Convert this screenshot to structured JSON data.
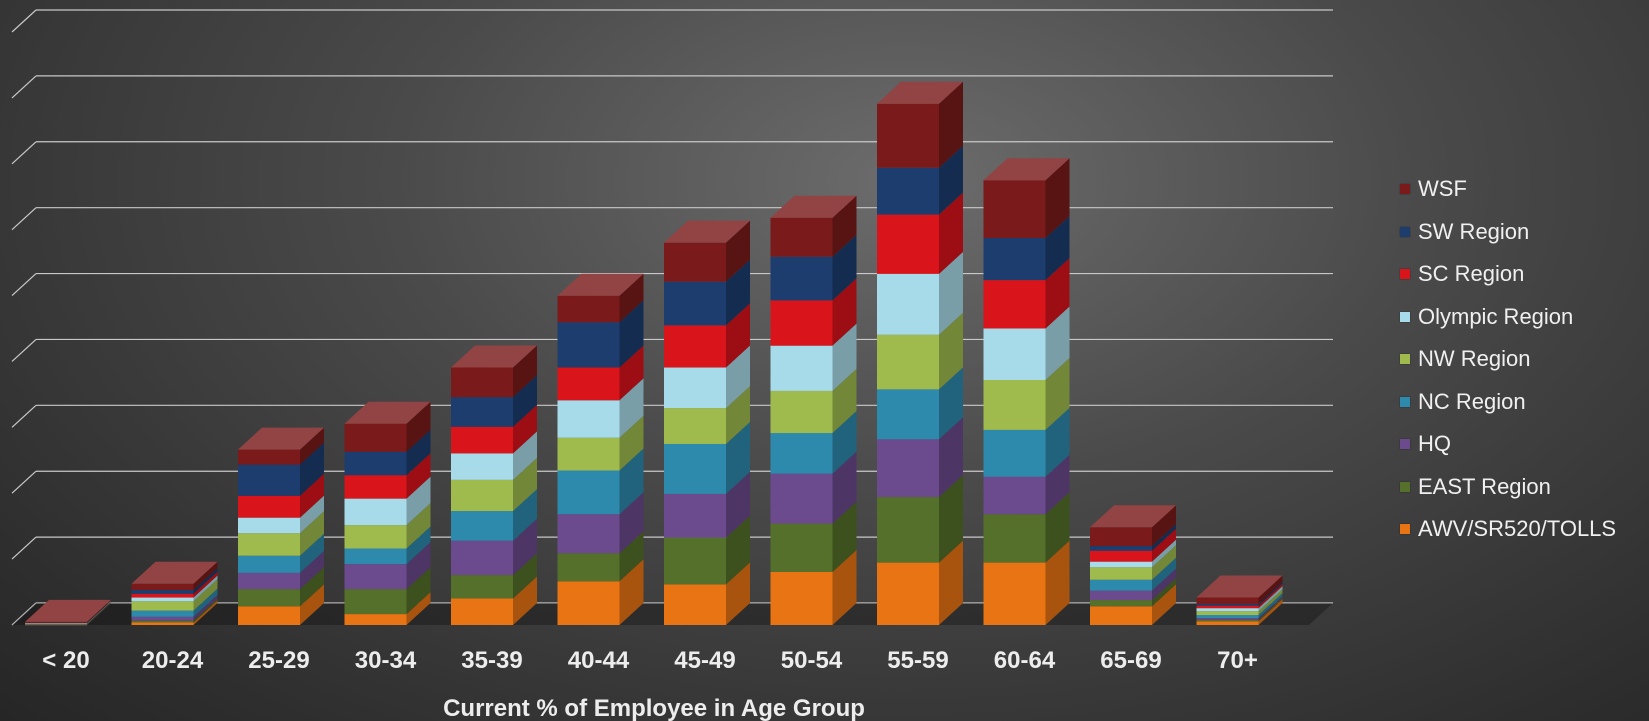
{
  "chart_data": {
    "type": "bar",
    "stacked": true,
    "three_d": true,
    "title": "",
    "xlabel": "Current % of Employee in Age Group",
    "ylabel": "",
    "grid": true,
    "legend_position": "right",
    "categories": [
      "< 20",
      "20-24",
      "25-29",
      "30-34",
      "35-39",
      "40-44",
      "45-49",
      "50-54",
      "55-59",
      "60-64",
      "65-69",
      "70+"
    ],
    "series": [
      {
        "name": "AWV/SR520/TOLLS",
        "color": "#e97413",
        "values": [
          0.01,
          0.08,
          0.6,
          0.35,
          0.85,
          1.4,
          1.3,
          1.7,
          2.0,
          2.0,
          0.6,
          0.12
        ]
      },
      {
        "name": "EAST Region",
        "color": "#55702a",
        "values": [
          0.01,
          0.06,
          0.55,
          0.8,
          0.75,
          0.9,
          1.5,
          1.55,
          2.1,
          1.55,
          0.2,
          0.05
        ]
      },
      {
        "name": "HQ",
        "color": "#6b4a8d",
        "values": [
          0.01,
          0.12,
          0.52,
          0.8,
          1.1,
          1.25,
          1.4,
          1.6,
          1.85,
          1.2,
          0.3,
          0.05
        ]
      },
      {
        "name": "NC Region",
        "color": "#2e8aac",
        "values": [
          0.01,
          0.2,
          0.55,
          0.5,
          0.95,
          1.4,
          1.6,
          1.3,
          1.6,
          1.5,
          0.35,
          0.1
        ]
      },
      {
        "name": "NW Region",
        "color": "#9fbb4d",
        "values": [
          0.01,
          0.3,
          0.72,
          0.75,
          1.0,
          1.05,
          1.15,
          1.35,
          1.75,
          1.6,
          0.4,
          0.12
        ]
      },
      {
        "name": "Olympic Region",
        "color": "#a8dbe9",
        "values": [
          0.01,
          0.12,
          0.5,
          0.85,
          0.85,
          1.2,
          1.3,
          1.45,
          1.95,
          1.65,
          0.18,
          0.1
        ]
      },
      {
        "name": "SC Region",
        "color": "#d9141b",
        "values": [
          0.01,
          0.12,
          0.7,
          0.75,
          0.85,
          1.05,
          1.35,
          1.45,
          1.9,
          1.55,
          0.35,
          0.08
        ]
      },
      {
        "name": "SW Region",
        "color": "#1c3d6e",
        "values": [
          0.01,
          0.12,
          1.0,
          0.75,
          0.95,
          1.45,
          1.4,
          1.4,
          1.5,
          1.35,
          0.15,
          0.06
        ]
      },
      {
        "name": "WSF",
        "color": "#7a1a1a",
        "values": [
          0.02,
          0.2,
          0.48,
          0.9,
          0.95,
          0.85,
          1.25,
          1.25,
          2.05,
          1.85,
          0.6,
          0.2
        ]
      }
    ],
    "ylim": [
      0,
      19
    ],
    "y_gridlines": 9
  }
}
